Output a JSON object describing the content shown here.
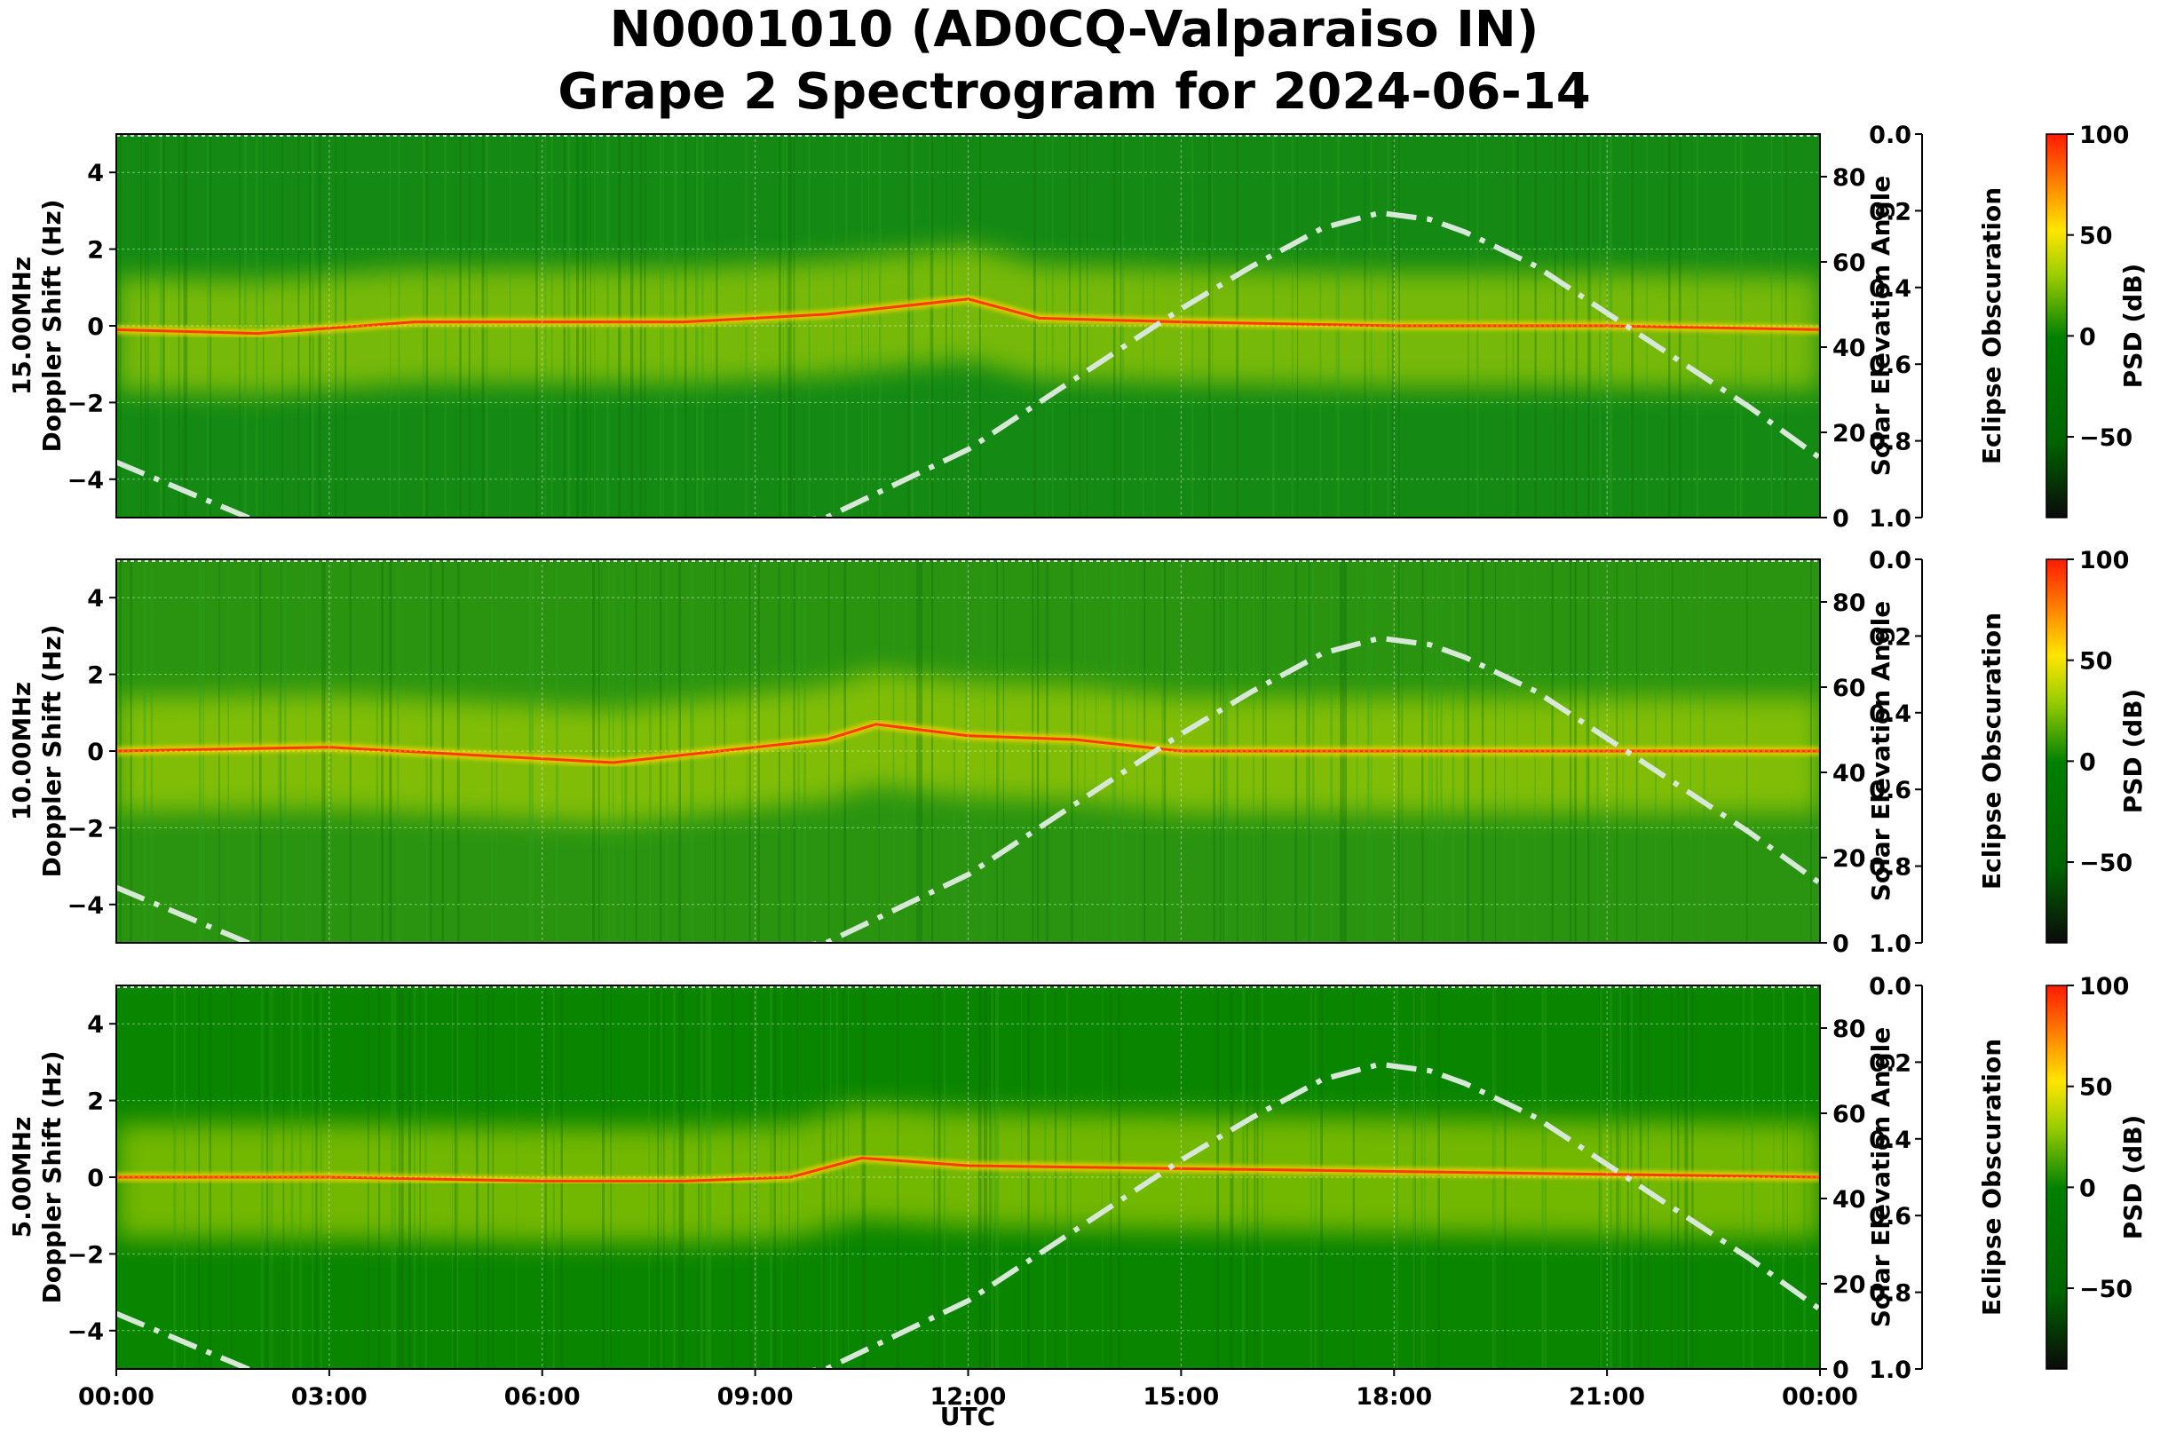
{
  "chart_data": {
    "type": "heatmap",
    "title_line1": "N0001010 (AD0CQ-Valparaiso IN)",
    "title_line2": "Grape 2 Spectrogram for 2024-06-14",
    "xlabel": "UTC",
    "x_ticks": [
      "00:00",
      "03:00",
      "06:00",
      "09:00",
      "12:00",
      "15:00",
      "18:00",
      "21:00",
      "00:00"
    ],
    "xlim_hours": [
      0,
      24
    ],
    "doppler_ylim": [
      -5,
      5
    ],
    "doppler_ticks": [
      "4",
      "2",
      "0",
      "−2",
      "−4"
    ],
    "solar_ylim": [
      0,
      90
    ],
    "solar_ticks": [
      "80",
      "60",
      "40",
      "20",
      "0"
    ],
    "solar_label": "Solar Elevation Angle",
    "eclipse_label": "Eclipse Obscuration",
    "eclipse_ticks": [
      "0.0",
      "0.2",
      "0.4",
      "0.6",
      "0.8",
      "1.0"
    ],
    "psd_label": "PSD (dB)",
    "psd_range": [
      -90,
      100
    ],
    "psd_ticks": [
      "100",
      "50",
      "0",
      "−50"
    ],
    "colormap": [
      "#0a0a0a",
      "#007a00",
      "#008000",
      "#d8e800",
      "#ffe000",
      "#ff2000"
    ],
    "panels": [
      {
        "frequency_label": "15.00MHz",
        "doppler_label": "Doppler Shift (Hz)",
        "background_color": "#148a14",
        "carrier_trace_hz": [
          [
            0,
            -0.1
          ],
          [
            2,
            -0.2
          ],
          [
            4.2,
            0.1
          ],
          [
            8,
            0.1
          ],
          [
            10,
            0.3
          ],
          [
            12,
            0.7
          ],
          [
            13,
            0.2
          ],
          [
            15,
            0.1
          ],
          [
            18,
            0
          ],
          [
            21,
            0
          ],
          [
            24,
            -0.1
          ]
        ]
      },
      {
        "frequency_label": "10.00MHz",
        "doppler_label": "Doppler Shift (Hz)",
        "background_color": "#2a9410",
        "carrier_trace_hz": [
          [
            0,
            0
          ],
          [
            3,
            0.1
          ],
          [
            5,
            -0.1
          ],
          [
            7,
            -0.3
          ],
          [
            9,
            0.1
          ],
          [
            10,
            0.3
          ],
          [
            10.7,
            0.7
          ],
          [
            12,
            0.4
          ],
          [
            13.5,
            0.3
          ],
          [
            15,
            0
          ],
          [
            18,
            0
          ],
          [
            24,
            0
          ]
        ]
      },
      {
        "frequency_label": "5.00MHz",
        "doppler_label": "Doppler Shift (Hz)",
        "background_color": "#0a8500",
        "carrier_trace_hz": [
          [
            0,
            0
          ],
          [
            3,
            0
          ],
          [
            6,
            -0.1
          ],
          [
            8,
            -0.1
          ],
          [
            9.5,
            0
          ],
          [
            10.5,
            0.5
          ],
          [
            12,
            0.3
          ],
          [
            24,
            0
          ]
        ]
      }
    ],
    "solar_elevation_series": {
      "name": "Solar Elevation Angle",
      "hours": [
        0,
        0.5,
        1,
        1.5,
        2,
        9.5,
        10,
        10.5,
        11,
        12,
        13,
        14,
        15,
        16,
        17,
        17.8,
        18.5,
        19,
        20,
        21,
        22,
        23,
        24
      ],
      "deg": [
        13,
        9.5,
        6,
        2.5,
        -1,
        -1,
        0,
        4,
        8,
        16,
        27,
        38,
        49,
        59,
        68,
        71.5,
        70,
        67,
        59,
        48,
        37,
        26,
        14
      ]
    },
    "eclipse_obscuration": 0
  }
}
